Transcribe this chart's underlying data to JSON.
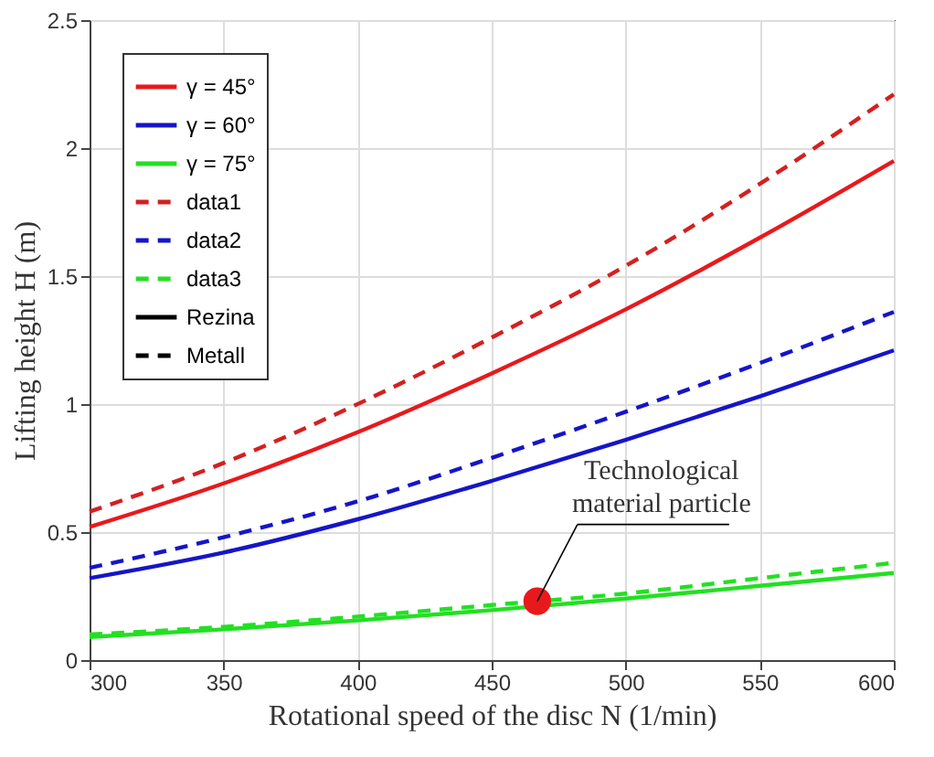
{
  "chart_data": {
    "type": "line",
    "xlabel": "Rotational speed of the disc N (1/min)",
    "ylabel": "Lifting height H (m)",
    "x": [
      300,
      350,
      400,
      450,
      500,
      550,
      600
    ],
    "xlim": [
      300,
      600
    ],
    "xticks": [
      300,
      350,
      400,
      450,
      500,
      550,
      600
    ],
    "ylim": [
      0,
      2.5
    ],
    "yticks": [
      0,
      0.5,
      1,
      1.5,
      2,
      2.5
    ],
    "grid": true,
    "legend": "top left",
    "marker": "none",
    "series": [
      {
        "name": "γ = 45°",
        "color": "#e8191c",
        "line_style": "solid",
        "values": [
          0.52,
          0.69,
          0.89,
          1.12,
          1.37,
          1.65,
          1.95
        ]
      },
      {
        "name": "γ = 60°",
        "color": "#1515c8",
        "line_style": "solid",
        "values": [
          0.32,
          0.42,
          0.55,
          0.7,
          0.86,
          1.03,
          1.21
        ]
      },
      {
        "name": "γ = 75°",
        "color": "#22e022",
        "line_style": "solid",
        "values": [
          0.09,
          0.12,
          0.155,
          0.195,
          0.24,
          0.29,
          0.34
        ]
      },
      {
        "name": "data1",
        "color": "#d42020",
        "line_style": "dashed",
        "values": [
          0.58,
          0.77,
          1.0,
          1.26,
          1.54,
          1.86,
          2.21
        ]
      },
      {
        "name": "data2",
        "color": "#1515c8",
        "line_style": "dashed",
        "values": [
          0.36,
          0.48,
          0.62,
          0.79,
          0.97,
          1.16,
          1.36
        ]
      },
      {
        "name": "data3",
        "color": "#22e022",
        "line_style": "dashed",
        "values": [
          0.1,
          0.13,
          0.17,
          0.215,
          0.26,
          0.32,
          0.38
        ]
      },
      {
        "name": "Rezina",
        "color": "#000000",
        "line_style": "solid",
        "values": [
          null,
          null,
          null,
          null,
          null,
          null,
          null
        ]
      },
      {
        "name": "Metall",
        "color": "#000000",
        "line_style": "dashed",
        "values": [
          null,
          null,
          null,
          null,
          null,
          null,
          null
        ]
      },
      {
        "type": "scatter",
        "color": "#e8191c",
        "marker": "circle",
        "x": [
          467
        ],
        "values": [
          0.23
        ]
      }
    ],
    "annotations": [
      {
        "text": "Technological material particle",
        "x": 467,
        "y": 0.23
      }
    ]
  }
}
